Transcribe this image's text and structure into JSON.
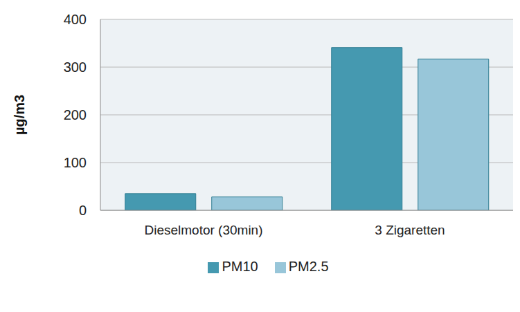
{
  "chart_data": {
    "type": "bar",
    "y_label": "µg/m3",
    "categories": [
      "Dieselmotor (30min)",
      "3 Zigaretten"
    ],
    "series": [
      {
        "name": "PM10",
        "color": "#4599b0",
        "values": [
          35,
          341
        ]
      },
      {
        "name": "PM2.5",
        "color": "#98c6d9",
        "values": [
          28,
          317
        ]
      }
    ],
    "ylim": [
      0,
      400
    ],
    "yticks": [
      0,
      100,
      200,
      300,
      400
    ],
    "grid": true,
    "legend": "bottom"
  }
}
